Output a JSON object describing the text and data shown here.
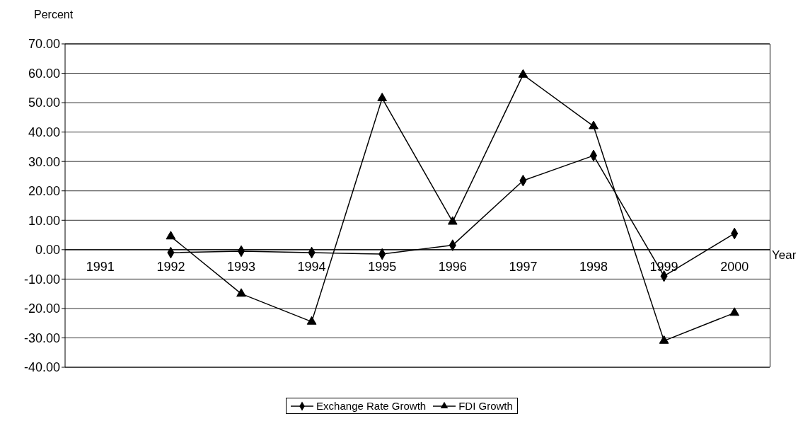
{
  "chart_data": {
    "type": "line",
    "ylabel": "Percent",
    "xlabel": "Year",
    "categories": [
      "1991",
      "1992",
      "1993",
      "1994",
      "1995",
      "1996",
      "1997",
      "1998",
      "1999",
      "2000"
    ],
    "series": [
      {
        "name": "Exchange Rate Growth",
        "color": "#000000",
        "marker": "diamond",
        "values": [
          null,
          -1,
          -0.5,
          -1,
          -1.5,
          1.5,
          23.5,
          32,
          -9,
          5.5
        ]
      },
      {
        "name": "FDI Growth",
        "color": "#000000",
        "marker": "triangle",
        "values": [
          null,
          4.5,
          -15,
          -24.5,
          51.5,
          9.5,
          59.5,
          42,
          -31,
          -21.5
        ]
      }
    ],
    "ylim": [
      -40,
      70
    ],
    "yticks": [
      {
        "value": -40,
        "label": "-40.00"
      },
      {
        "value": -30,
        "label": "-30.00"
      },
      {
        "value": -20,
        "label": "-20.00"
      },
      {
        "value": -10,
        "label": "-10.00"
      },
      {
        "value": 0,
        "label": "0.00"
      },
      {
        "value": 10,
        "label": "10.00"
      },
      {
        "value": 20,
        "label": "20.00"
      },
      {
        "value": 30,
        "label": "30.00"
      },
      {
        "value": 40,
        "label": "40.00"
      },
      {
        "value": 50,
        "label": "50.00"
      },
      {
        "value": 60,
        "label": "60.00"
      },
      {
        "value": 70,
        "label": "70.00"
      }
    ],
    "grid": "y",
    "legend": "bottom",
    "line_style": "solid"
  }
}
